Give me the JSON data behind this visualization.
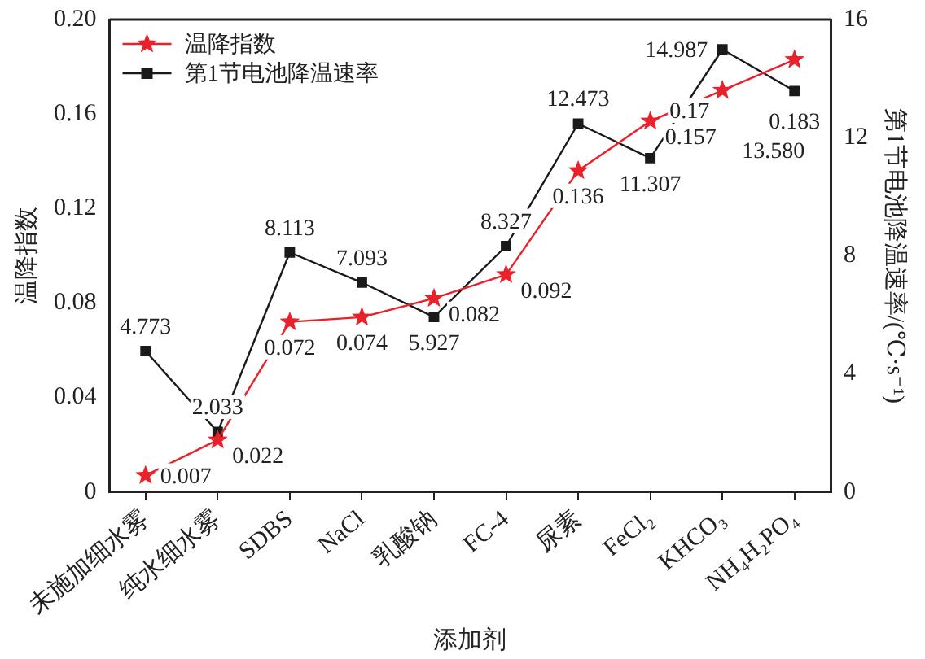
{
  "chart_data": {
    "type": "line",
    "xlabel": "添加剂",
    "ylabel": "温降指数",
    "y2label": "第1节电池降温速率/(℃·s⁻¹)",
    "categories": [
      "未施加细水雾",
      "纯水细水雾",
      "SDBS",
      "NaCl",
      "乳酸钠",
      "FC-4",
      "尿素",
      "FeCl₂",
      "KHCO₃",
      "NH₄H₂PO₄"
    ],
    "series": [
      {
        "name": "温降指数",
        "color": "#e8212b",
        "marker": "star",
        "values": [
          0.007,
          0.022,
          0.072,
          0.074,
          0.082,
          0.092,
          0.136,
          0.157,
          0.17,
          0.183
        ],
        "value_labels": [
          "0.007",
          "0.022",
          "0.072",
          "0.074",
          "0.082",
          "0.092",
          "0.136",
          "0.157",
          "0.17",
          "0.183"
        ]
      },
      {
        "name": "第1节电池降温速率",
        "color": "#1a1a1a",
        "marker": "square",
        "axis": "y2",
        "values": [
          4.773,
          2.033,
          8.113,
          7.093,
          5.927,
          8.327,
          12.473,
          11.307,
          14.987,
          13.58
        ],
        "value_labels": [
          "4.773",
          "2.033",
          "8.113",
          "7.093",
          "5.927",
          "8.327",
          "12.473",
          "11.307",
          "14.987",
          "13.580"
        ]
      }
    ],
    "ylim": [
      0,
      0.2
    ],
    "yticks": [
      0,
      0.04,
      0.08,
      0.12,
      0.16,
      {
        "value": 0.2,
        "label": "0.20"
      }
    ],
    "y2lim": [
      0,
      16
    ],
    "y2ticks": [
      0,
      4,
      8,
      12,
      16
    ],
    "legend": "top left",
    "grid": false,
    "line_style": "solid"
  }
}
